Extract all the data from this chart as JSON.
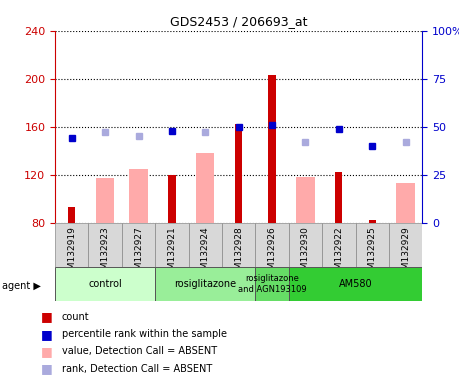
{
  "title": "GDS2453 / 206693_at",
  "samples": [
    "GSM132919",
    "GSM132923",
    "GSM132927",
    "GSM132921",
    "GSM132924",
    "GSM132928",
    "GSM132926",
    "GSM132930",
    "GSM132922",
    "GSM132925",
    "GSM132929"
  ],
  "count_values": [
    93,
    null,
    null,
    120,
    null,
    162,
    203,
    null,
    122,
    82,
    null
  ],
  "absent_value_bars": [
    null,
    117,
    125,
    null,
    138,
    null,
    null,
    118,
    null,
    null,
    113
  ],
  "percentile_rank": [
    44,
    null,
    null,
    48,
    null,
    50,
    51,
    null,
    49,
    40,
    null
  ],
  "absent_rank_markers": [
    null,
    47,
    45,
    null,
    47,
    null,
    null,
    42,
    null,
    null,
    42
  ],
  "ylim_left": [
    80,
    240
  ],
  "ylim_right": [
    0,
    100
  ],
  "yticks_left": [
    80,
    120,
    160,
    200,
    240
  ],
  "yticks_right": [
    0,
    25,
    50,
    75,
    100
  ],
  "yticklabels_right": [
    "0",
    "25",
    "50",
    "75",
    "100%"
  ],
  "group_configs": [
    {
      "label": "control",
      "indices": [
        0,
        1,
        2
      ],
      "color": "#ccffcc"
    },
    {
      "label": "rosiglitazone",
      "indices": [
        3,
        4,
        5
      ],
      "color": "#99ee99"
    },
    {
      "label": "rosiglitazone\nand AGN193109",
      "indices": [
        6
      ],
      "color": "#66dd66"
    },
    {
      "label": "AM580",
      "indices": [
        7,
        8,
        9,
        10
      ],
      "color": "#33cc33"
    }
  ],
  "count_color": "#cc0000",
  "absent_bar_color": "#ffaaaa",
  "percentile_color": "#0000cc",
  "absent_rank_color": "#aaaadd",
  "wide_bar_width": 0.55,
  "narrow_bar_width": 0.22,
  "plot_bg": "#ffffff",
  "xticklabel_bg": "#d8d8d8"
}
